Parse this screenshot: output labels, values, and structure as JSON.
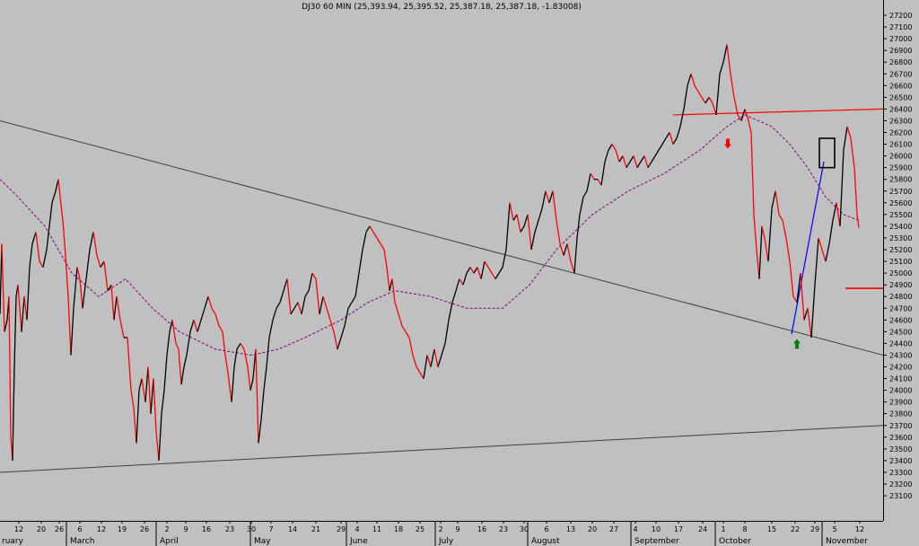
{
  "chart_data": {
    "type": "line",
    "title": "DJ30 60 MIN (25,393.94, 25,395.52, 25,387.18, 25,387.18, -1.83008)",
    "y_ticks": [
      23100,
      23200,
      23300,
      23400,
      23500,
      23600,
      23700,
      23800,
      23900,
      24000,
      24100,
      24200,
      24300,
      24400,
      24500,
      24600,
      24700,
      24800,
      24900,
      25000,
      25100,
      25200,
      25300,
      25400,
      25500,
      25600,
      25700,
      25800,
      25900,
      26000,
      26100,
      26200,
      26300,
      26400,
      26500,
      26600,
      26700,
      26800,
      26900,
      27000,
      27100,
      27200
    ],
    "ylim": [
      23050,
      27250
    ],
    "x_day_ticks": [
      "12",
      "20",
      "26",
      "6",
      "12",
      "19",
      "26",
      "2",
      "9",
      "16",
      "23",
      "30",
      "7",
      "14",
      "21",
      "29",
      "4",
      "11",
      "18",
      "25",
      "2",
      "9",
      "16",
      "23",
      "30",
      "6",
      "13",
      "20",
      "27",
      "4",
      "10",
      "17",
      "24",
      "1",
      "8",
      "15",
      "22",
      "29",
      "5",
      "12"
    ],
    "x_month_labels": [
      "ruary",
      "March",
      "April",
      "May",
      "June",
      "July",
      "August",
      "September",
      "October",
      "November"
    ],
    "price_path": [
      [
        0,
        24650
      ],
      [
        2,
        25250
      ],
      [
        5,
        24500
      ],
      [
        8,
        24600
      ],
      [
        10,
        24800
      ],
      [
        12,
        23600
      ],
      [
        14,
        23400
      ],
      [
        16,
        24200
      ],
      [
        18,
        24800
      ],
      [
        20,
        24900
      ],
      [
        24,
        24500
      ],
      [
        27,
        24800
      ],
      [
        30,
        24600
      ],
      [
        33,
        25050
      ],
      [
        36,
        25250
      ],
      [
        40,
        25350
      ],
      [
        44,
        25100
      ],
      [
        48,
        25050
      ],
      [
        52,
        25200
      ],
      [
        55,
        25400
      ],
      [
        58,
        25600
      ],
      [
        62,
        25700
      ],
      [
        65,
        25800
      ],
      [
        67,
        25650
      ],
      [
        70,
        25450
      ],
      [
        73,
        25150
      ],
      [
        76,
        24800
      ],
      [
        79,
        24300
      ],
      [
        82,
        24700
      ],
      [
        86,
        25050
      ],
      [
        89,
        24950
      ],
      [
        92,
        24700
      ],
      [
        96,
        24950
      ],
      [
        100,
        25200
      ],
      [
        104,
        25350
      ],
      [
        108,
        25150
      ],
      [
        112,
        25050
      ],
      [
        116,
        25100
      ],
      [
        120,
        24850
      ],
      [
        124,
        24900
      ],
      [
        127,
        24600
      ],
      [
        130,
        24800
      ],
      [
        134,
        24600
      ],
      [
        138,
        24450
      ],
      [
        142,
        24450
      ],
      [
        146,
        24000
      ],
      [
        149,
        23850
      ],
      [
        152,
        23550
      ],
      [
        155,
        24000
      ],
      [
        158,
        24100
      ],
      [
        162,
        23900
      ],
      [
        165,
        24200
      ],
      [
        168,
        23800
      ],
      [
        171,
        24100
      ],
      [
        174,
        23650
      ],
      [
        177,
        23400
      ],
      [
        180,
        23800
      ],
      [
        183,
        24000
      ],
      [
        186,
        24300
      ],
      [
        189,
        24500
      ],
      [
        192,
        24600
      ],
      [
        196,
        24400
      ],
      [
        199,
        24350
      ],
      [
        202,
        24050
      ],
      [
        205,
        24200
      ],
      [
        208,
        24300
      ],
      [
        212,
        24500
      ],
      [
        216,
        24600
      ],
      [
        220,
        24500
      ],
      [
        224,
        24600
      ],
      [
        228,
        24700
      ],
      [
        232,
        24800
      ],
      [
        236,
        24700
      ],
      [
        240,
        24650
      ],
      [
        244,
        24550
      ],
      [
        248,
        24500
      ],
      [
        251,
        24300
      ],
      [
        254,
        24150
      ],
      [
        258,
        23900
      ],
      [
        261,
        24200
      ],
      [
        264,
        24350
      ],
      [
        268,
        24400
      ],
      [
        272,
        24350
      ],
      [
        276,
        24200
      ],
      [
        279,
        24000
      ],
      [
        282,
        24100
      ],
      [
        285,
        24350
      ],
      [
        288,
        23550
      ],
      [
        291,
        23750
      ],
      [
        294,
        24000
      ],
      [
        297,
        24200
      ],
      [
        300,
        24450
      ],
      [
        304,
        24600
      ],
      [
        308,
        24700
      ],
      [
        312,
        24750
      ],
      [
        316,
        24850
      ],
      [
        320,
        24950
      ],
      [
        324,
        24650
      ],
      [
        328,
        24700
      ],
      [
        332,
        24750
      ],
      [
        336,
        24650
      ],
      [
        340,
        24800
      ],
      [
        344,
        24850
      ],
      [
        348,
        25000
      ],
      [
        352,
        24950
      ],
      [
        356,
        24650
      ],
      [
        360,
        24800
      ],
      [
        364,
        24700
      ],
      [
        368,
        24600
      ],
      [
        372,
        24500
      ],
      [
        376,
        24350
      ],
      [
        380,
        24450
      ],
      [
        384,
        24550
      ],
      [
        388,
        24700
      ],
      [
        392,
        24750
      ],
      [
        396,
        24800
      ],
      [
        400,
        25000
      ],
      [
        404,
        25200
      ],
      [
        408,
        25350
      ],
      [
        412,
        25400
      ],
      [
        416,
        25350
      ],
      [
        420,
        25300
      ],
      [
        424,
        25250
      ],
      [
        428,
        25200
      ],
      [
        431,
        25050
      ],
      [
        434,
        24850
      ],
      [
        437,
        24950
      ],
      [
        440,
        24750
      ],
      [
        444,
        24650
      ],
      [
        448,
        24550
      ],
      [
        452,
        24500
      ],
      [
        456,
        24450
      ],
      [
        460,
        24300
      ],
      [
        464,
        24200
      ],
      [
        468,
        24150
      ],
      [
        472,
        24100
      ],
      [
        476,
        24300
      ],
      [
        480,
        24200
      ],
      [
        484,
        24350
      ],
      [
        488,
        24200
      ],
      [
        492,
        24300
      ],
      [
        496,
        24400
      ],
      [
        500,
        24600
      ],
      [
        504,
        24750
      ],
      [
        508,
        24850
      ],
      [
        512,
        24950
      ],
      [
        516,
        24900
      ],
      [
        520,
        25000
      ],
      [
        524,
        25050
      ],
      [
        528,
        25000
      ],
      [
        532,
        25050
      ],
      [
        536,
        24950
      ],
      [
        540,
        25100
      ],
      [
        544,
        25050
      ],
      [
        548,
        25000
      ],
      [
        552,
        24950
      ],
      [
        556,
        25000
      ],
      [
        560,
        25050
      ],
      [
        564,
        25200
      ],
      [
        568,
        25600
      ],
      [
        572,
        25450
      ],
      [
        576,
        25500
      ],
      [
        580,
        25350
      ],
      [
        584,
        25400
      ],
      [
        588,
        25500
      ],
      [
        592,
        25200
      ],
      [
        596,
        25350
      ],
      [
        600,
        25450
      ],
      [
        604,
        25550
      ],
      [
        608,
        25700
      ],
      [
        612,
        25600
      ],
      [
        616,
        25700
      ],
      [
        620,
        25450
      ],
      [
        624,
        25250
      ],
      [
        628,
        25150
      ],
      [
        632,
        25250
      ],
      [
        636,
        25100
      ],
      [
        640,
        25000
      ],
      [
        643,
        25300
      ],
      [
        646,
        25500
      ],
      [
        650,
        25650
      ],
      [
        654,
        25700
      ],
      [
        658,
        25850
      ],
      [
        662,
        25800
      ],
      [
        666,
        25800
      ],
      [
        670,
        25750
      ],
      [
        674,
        25950
      ],
      [
        678,
        26050
      ],
      [
        682,
        26100
      ],
      [
        686,
        26050
      ],
      [
        690,
        25950
      ],
      [
        694,
        26000
      ],
      [
        698,
        25900
      ],
      [
        702,
        25950
      ],
      [
        706,
        26000
      ],
      [
        710,
        25900
      ],
      [
        714,
        25950
      ],
      [
        718,
        26000
      ],
      [
        722,
        25900
      ],
      [
        726,
        25950
      ],
      [
        730,
        26000
      ],
      [
        734,
        26050
      ],
      [
        738,
        26100
      ],
      [
        742,
        26150
      ],
      [
        746,
        26200
      ],
      [
        750,
        26100
      ],
      [
        754,
        26150
      ],
      [
        758,
        26250
      ],
      [
        762,
        26400
      ],
      [
        766,
        26600
      ],
      [
        770,
        26700
      ],
      [
        774,
        26600
      ],
      [
        778,
        26550
      ],
      [
        782,
        26500
      ],
      [
        786,
        26450
      ],
      [
        790,
        26500
      ],
      [
        794,
        26450
      ],
      [
        798,
        26350
      ],
      [
        802,
        26700
      ],
      [
        806,
        26800
      ],
      [
        810,
        26950
      ],
      [
        814,
        26700
      ],
      [
        818,
        26500
      ],
      [
        822,
        26350
      ],
      [
        826,
        26300
      ],
      [
        830,
        26400
      ],
      [
        834,
        26300
      ],
      [
        837,
        26200
      ],
      [
        840,
        25500
      ],
      [
        843,
        25200
      ],
      [
        846,
        24950
      ],
      [
        849,
        25400
      ],
      [
        852,
        25300
      ],
      [
        856,
        25100
      ],
      [
        860,
        25550
      ],
      [
        864,
        25700
      ],
      [
        868,
        25500
      ],
      [
        872,
        25450
      ],
      [
        876,
        25300
      ],
      [
        880,
        25100
      ],
      [
        884,
        24800
      ],
      [
        888,
        24750
      ],
      [
        892,
        25000
      ],
      [
        896,
        24600
      ],
      [
        900,
        24700
      ],
      [
        904,
        24450
      ],
      [
        908,
        24900
      ],
      [
        912,
        25300
      ],
      [
        916,
        25200
      ],
      [
        920,
        25100
      ],
      [
        924,
        25250
      ],
      [
        928,
        25450
      ],
      [
        932,
        25600
      ],
      [
        936,
        25400
      ],
      [
        940,
        26050
      ],
      [
        944,
        26250
      ],
      [
        948,
        26150
      ],
      [
        952,
        25900
      ],
      [
        955,
        25500
      ],
      [
        957,
        25387
      ]
    ],
    "moving_average_path": [
      [
        0,
        25800
      ],
      [
        20,
        25650
      ],
      [
        50,
        25400
      ],
      [
        80,
        25000
      ],
      [
        110,
        24800
      ],
      [
        140,
        24950
      ],
      [
        170,
        24700
      ],
      [
        200,
        24500
      ],
      [
        240,
        24350
      ],
      [
        280,
        24300
      ],
      [
        310,
        24350
      ],
      [
        340,
        24450
      ],
      [
        380,
        24600
      ],
      [
        410,
        24750
      ],
      [
        440,
        24850
      ],
      [
        480,
        24800
      ],
      [
        520,
        24700
      ],
      [
        560,
        24700
      ],
      [
        590,
        24900
      ],
      [
        620,
        25200
      ],
      [
        660,
        25500
      ],
      [
        700,
        25700
      ],
      [
        740,
        25850
      ],
      [
        780,
        26050
      ],
      [
        810,
        26250
      ],
      [
        830,
        26350
      ],
      [
        860,
        26250
      ],
      [
        880,
        26100
      ],
      [
        900,
        25900
      ],
      [
        920,
        25650
      ],
      [
        940,
        25500
      ],
      [
        957,
        25450
      ]
    ],
    "annotations": {
      "channel_upper_line": [
        [
          0,
          26300
        ],
        [
          984,
          24300
        ]
      ],
      "channel_lower_line": [
        [
          0,
          23300
        ],
        [
          984,
          23700
        ]
      ],
      "resistance_line": [
        [
          750,
          26350
        ],
        [
          984,
          26400
        ]
      ],
      "support_segment": [
        [
          942,
          24870
        ],
        [
          984,
          24870
        ]
      ],
      "trend_line": [
        [
          882,
          24480
        ],
        [
          918,
          25950
        ]
      ],
      "box": {
        "x1": 913,
        "x2": 930,
        "y1": 26150,
        "y2": 25900
      },
      "down_arrow": {
        "x": 811,
        "y": 26100
      },
      "up_arrow": {
        "x": 888,
        "y": 24400
      }
    },
    "grid": false,
    "colors": {
      "background": "#c0c0c0",
      "price_up": "#000000",
      "price_down": "#ff0000",
      "moving_average": "#800080",
      "channel": "#404040",
      "resistance": "#ff0000",
      "trend": "#0000ff",
      "arrow_down": "#ff0000",
      "arrow_up": "#008000"
    }
  }
}
